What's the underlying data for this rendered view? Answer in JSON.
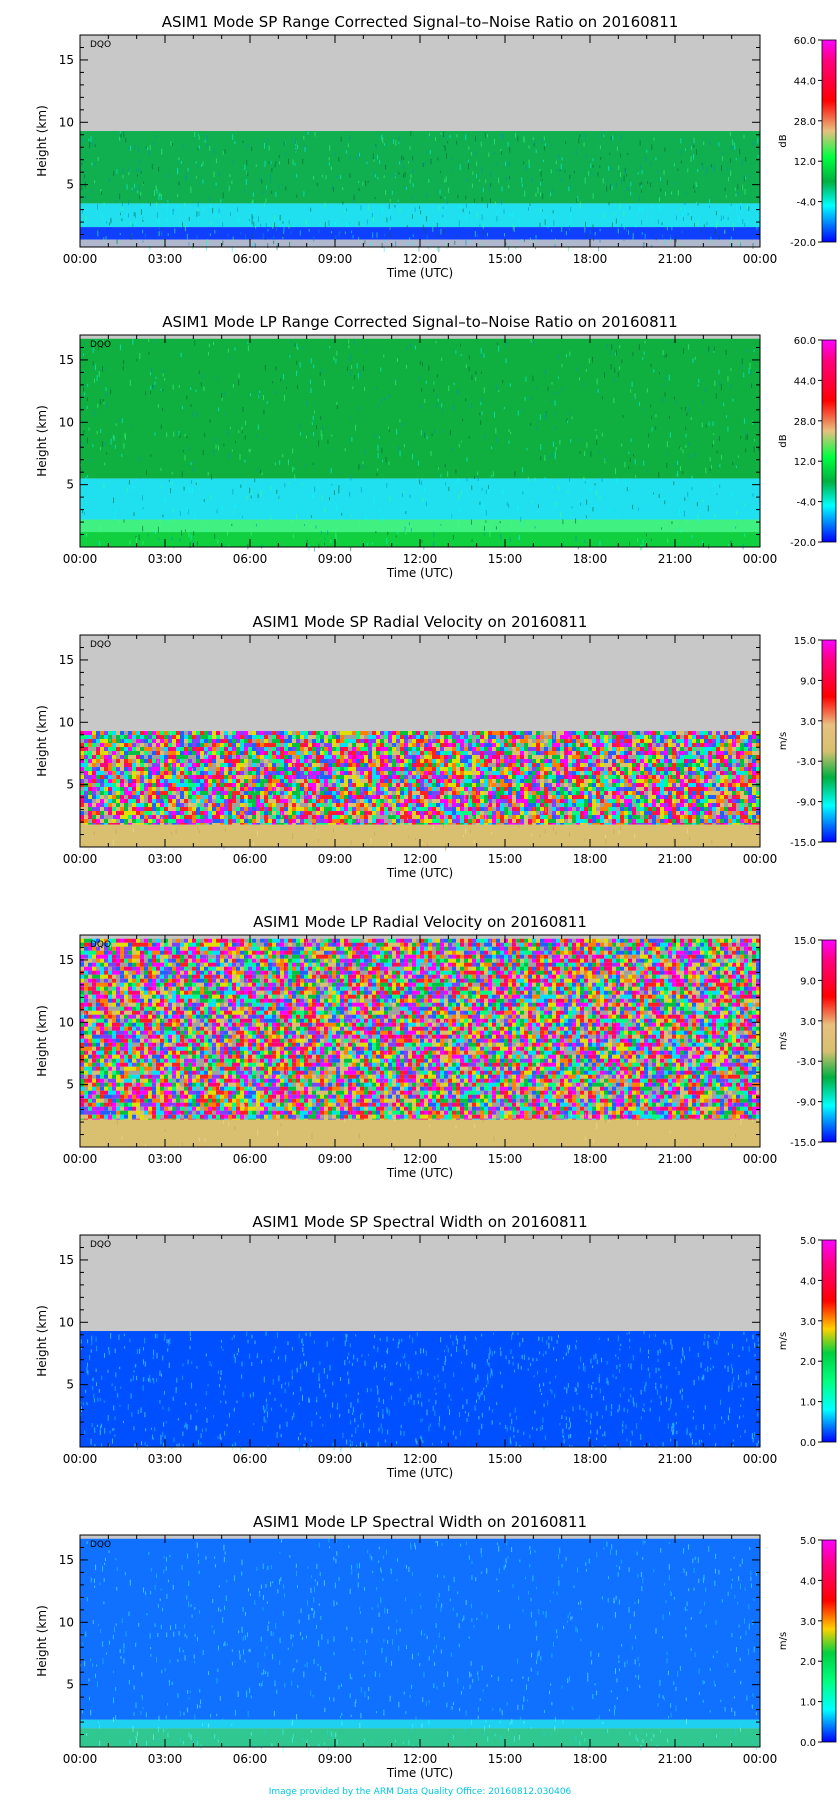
{
  "footer": "Image provided by the ARM Data Quality Office: 20160812.030406",
  "shared": {
    "xlabel": "Time (UTC)",
    "ylabel": "Height (km)",
    "x_ticks": [
      "00:00",
      "03:00",
      "06:00",
      "09:00",
      "12:00",
      "15:00",
      "18:00",
      "21:00",
      "00:00"
    ],
    "y_ticks": [
      5,
      10,
      15
    ],
    "ylim": [
      0,
      17
    ],
    "xlim_hours": [
      0,
      24
    ],
    "dqo_label": "DQO",
    "nodata_color": "#c8c8c8"
  },
  "chart_data": [
    {
      "type": "heatmap",
      "title": "ASIM1 Mode SP Range Corrected Signal–to–Noise Ratio on 20160811",
      "unit": "dB",
      "colorbar_ticks": [
        "60.0",
        "44.0",
        "28.0",
        "12.0",
        "-4.0",
        "-20.0"
      ],
      "colorbar_range": [
        -20,
        60
      ],
      "data_top_km": 9.3,
      "layers": [
        {
          "from_km": 0,
          "to_km": 0.6,
          "description_color": "#b0b8d0"
        },
        {
          "from_km": 0.6,
          "to_km": 1.6,
          "description_color": "#1040ff"
        },
        {
          "from_km": 1.6,
          "to_km": 3.5,
          "description_color": "#20e0f0"
        },
        {
          "from_km": 3.5,
          "to_km": 9.3,
          "description_color": "#10b050"
        }
      ]
    },
    {
      "type": "heatmap",
      "title": "ASIM1 Mode LP Range Corrected Signal–to–Noise Ratio on 20160811",
      "unit": "dB",
      "colorbar_ticks": [
        "60.0",
        "44.0",
        "28.0",
        "12.0",
        "-4.0",
        "-20.0"
      ],
      "colorbar_range": [
        -20,
        60
      ],
      "data_top_km": 16.7,
      "layers": [
        {
          "from_km": 0,
          "to_km": 1.2,
          "description_color": "#10d040"
        },
        {
          "from_km": 1.2,
          "to_km": 2.2,
          "description_color": "#40f080"
        },
        {
          "from_km": 2.2,
          "to_km": 5.5,
          "description_color": "#20e0f0"
        },
        {
          "from_km": 5.5,
          "to_km": 16.7,
          "description_color": "#10b040"
        }
      ]
    },
    {
      "type": "heatmap",
      "title": "ASIM1 Mode SP Radial Velocity  on 20160811",
      "unit": "m/s",
      "colorbar_ticks": [
        "15.0",
        "9.0",
        "3.0",
        "-3.0",
        "-9.0",
        "-15.0"
      ],
      "colorbar_range": [
        -15,
        15
      ],
      "data_top_km": 9.3,
      "layers": [
        {
          "from_km": 0,
          "to_km": 1.8,
          "description_color": "#d8c070"
        },
        {
          "from_km": 1.8,
          "to_km": 9.3,
          "description_color": "noise"
        }
      ]
    },
    {
      "type": "heatmap",
      "title": "ASIM1 Mode LP Radial Velocity  on 20160811",
      "unit": "m/s",
      "colorbar_ticks": [
        "15.0",
        "9.0",
        "3.0",
        "-3.0",
        "-9.0",
        "-15.0"
      ],
      "colorbar_range": [
        -15,
        15
      ],
      "data_top_km": 16.7,
      "layers": [
        {
          "from_km": 0,
          "to_km": 2.2,
          "description_color": "#d8c070"
        },
        {
          "from_km": 2.2,
          "to_km": 16.7,
          "description_color": "noise"
        }
      ]
    },
    {
      "type": "heatmap",
      "title": "ASIM1 Mode SP Spectral Width  on 20160811",
      "unit": "m/s",
      "colorbar_ticks": [
        "5.0",
        "4.0",
        "3.0",
        "2.0",
        "1.0",
        "0.0"
      ],
      "colorbar_range": [
        0,
        5
      ],
      "data_top_km": 9.3,
      "layers": [
        {
          "from_km": 0,
          "to_km": 9.3,
          "description_color": "#0050ff"
        }
      ]
    },
    {
      "type": "heatmap",
      "title": "ASIM1 Mode LP Spectral Width  on 20160811",
      "unit": "m/s",
      "colorbar_ticks": [
        "5.0",
        "4.0",
        "3.0",
        "2.0",
        "1.0",
        "0.0"
      ],
      "colorbar_range": [
        0,
        5
      ],
      "data_top_km": 16.7,
      "layers": [
        {
          "from_km": 0,
          "to_km": 1.5,
          "description_color": "#30c890"
        },
        {
          "from_km": 1.5,
          "to_km": 2.2,
          "description_color": "#20d0f0"
        },
        {
          "from_km": 2.2,
          "to_km": 16.7,
          "description_color": "#1070ff"
        }
      ]
    }
  ]
}
